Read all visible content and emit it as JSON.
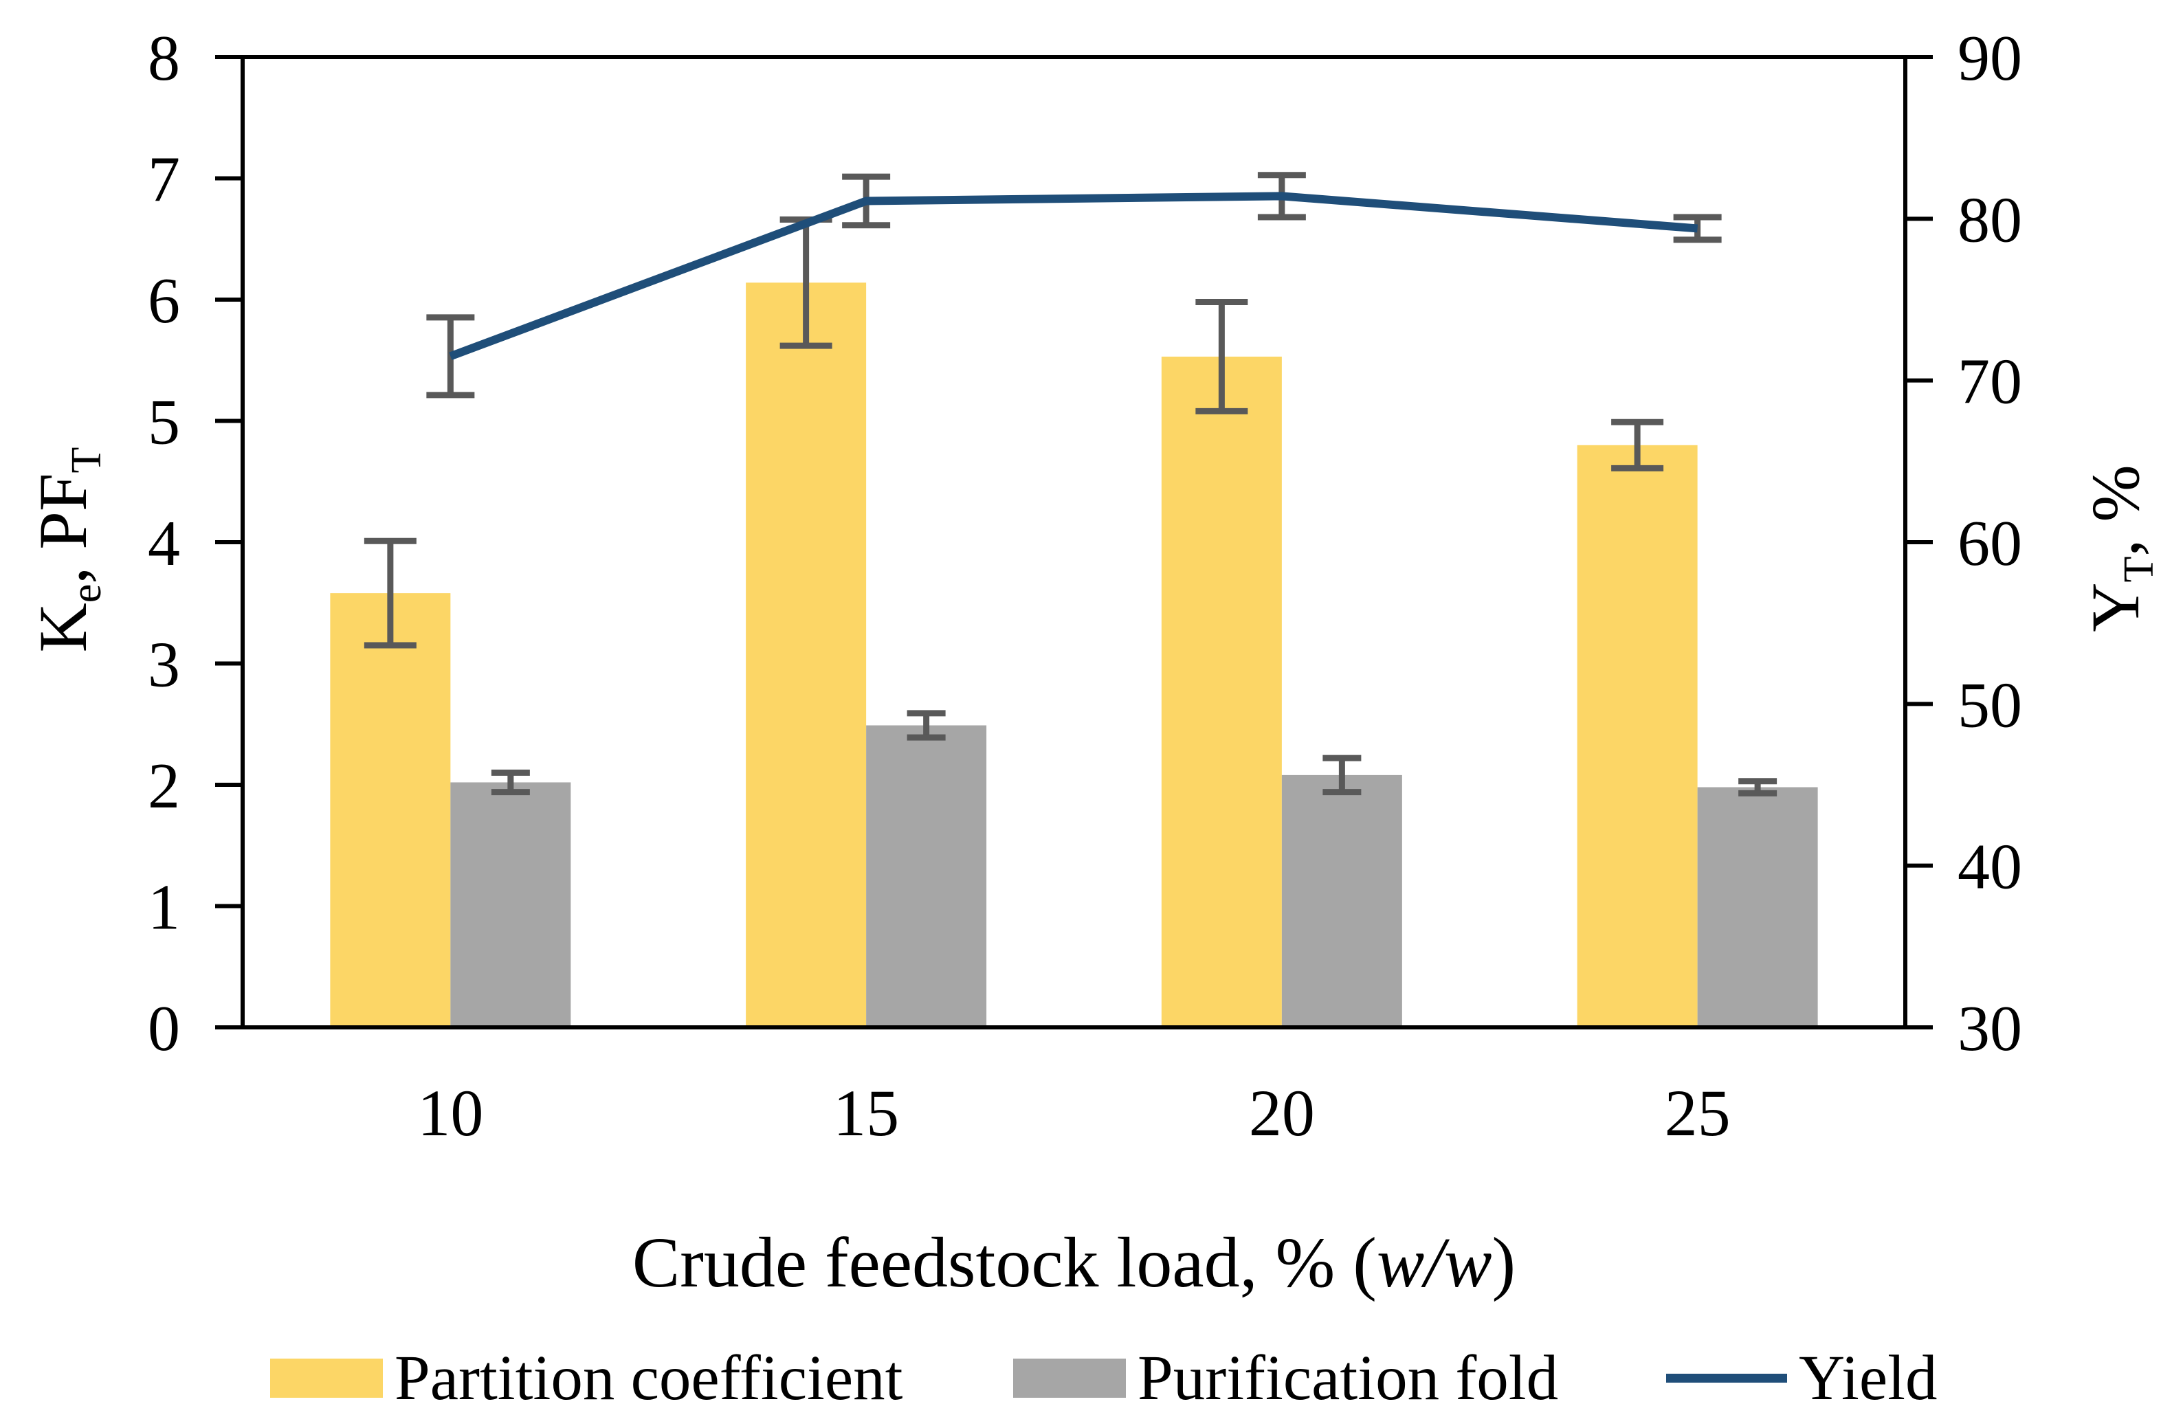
{
  "chart_data": {
    "type": "bar+line",
    "categories": [
      "10",
      "15",
      "20",
      "25"
    ],
    "xlabel": "Crude feedstock load, % (w/w)",
    "xlabel_segments": [
      "Crude feedstock load, % (",
      {
        "i": "w/w"
      },
      ")"
    ],
    "ylabel_left": "Ke, PFT",
    "ylabel_left_segments": [
      "K",
      {
        "sub": "e"
      },
      ", PF",
      {
        "sub": "T"
      }
    ],
    "ylabel_right": "YT, %",
    "ylabel_right_segments": [
      "Y",
      {
        "sub": "T"
      },
      ", %"
    ],
    "axes": {
      "left": {
        "min": 0,
        "max": 8,
        "ticks": [
          "0",
          "1",
          "2",
          "3",
          "4",
          "5",
          "6",
          "7",
          "8"
        ]
      },
      "right": {
        "min": 30,
        "max": 90,
        "ticks": [
          "30",
          "40",
          "50",
          "60",
          "70",
          "80",
          "90"
        ]
      }
    },
    "series": [
      {
        "name": "Partition coefficient",
        "type": "bar",
        "axis": "left",
        "color": "#FCD666",
        "values": [
          3.58,
          6.14,
          5.53,
          4.8
        ],
        "errors": [
          0.43,
          0.52,
          0.45,
          0.19
        ]
      },
      {
        "name": "Purification fold",
        "type": "bar",
        "axis": "left",
        "color": "#A6A6A6",
        "values": [
          2.02,
          2.49,
          2.08,
          1.98
        ],
        "errors": [
          0.08,
          0.1,
          0.14,
          0.05
        ]
      },
      {
        "name": "Yield",
        "type": "line",
        "axis": "right",
        "color": "#1F4E79",
        "values": [
          71.5,
          81.1,
          81.4,
          79.4
        ],
        "errors": [
          2.4,
          1.5,
          1.3,
          0.7
        ]
      }
    ],
    "error_bar_color": "#595959",
    "legend_position": "bottom",
    "grid": false
  }
}
